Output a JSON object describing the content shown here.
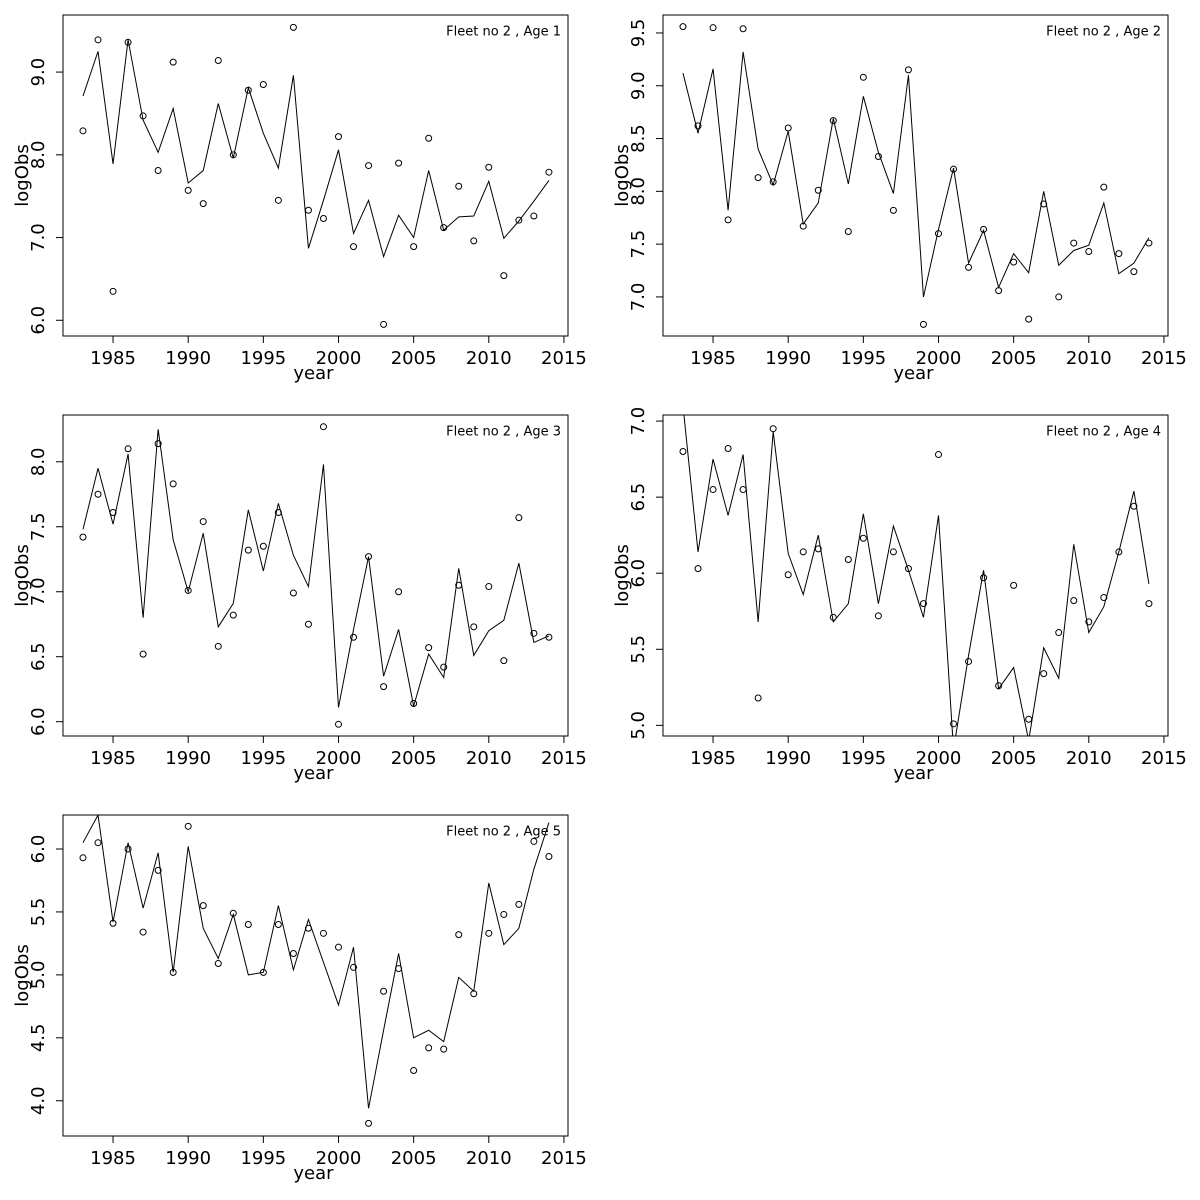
{
  "chart_data": [
    {
      "type": "line",
      "title": "Fleet no 2 , Age 1",
      "x_label": "year",
      "y_label": "logObs",
      "x": [
        1983,
        1984,
        1985,
        1986,
        1987,
        1988,
        1989,
        1990,
        1991,
        1992,
        1993,
        1994,
        1995,
        1996,
        1997,
        1998,
        1999,
        2000,
        2001,
        2002,
        2003,
        2004,
        2005,
        2006,
        2007,
        2008,
        2009,
        2010,
        2011,
        2012,
        2013,
        2014
      ],
      "xlim": [
        1981.67,
        2015.27
      ],
      "xticks": [
        1985,
        1990,
        1995,
        2000,
        2005,
        2010,
        2015
      ],
      "ylim": [
        5.81,
        9.69
      ],
      "yticks": [
        {
          "value": 6,
          "label": "6.0"
        },
        {
          "value": 7,
          "label": "7.0"
        },
        {
          "value": 8,
          "label": "8.0"
        },
        {
          "value": 9,
          "label": "9.0"
        }
      ],
      "series": [
        {
          "mode": "points",
          "color": "#000000",
          "values": [
            8.29,
            9.39,
            6.35,
            9.36,
            8.47,
            7.81,
            9.12,
            7.57,
            7.41,
            9.14,
            8.0,
            8.78,
            8.85,
            7.45,
            9.54,
            7.33,
            7.23,
            8.22,
            6.89,
            7.87,
            5.95,
            7.9,
            6.89,
            8.2,
            7.12,
            7.62,
            6.96,
            7.85,
            6.54,
            7.21,
            7.26,
            7.79
          ]
        },
        {
          "mode": "line",
          "color": "#000000",
          "values": [
            8.71,
            9.25,
            7.89,
            9.39,
            8.42,
            8.03,
            8.56,
            7.66,
            7.81,
            8.62,
            7.96,
            8.81,
            8.26,
            7.84,
            8.96,
            6.87,
            7.45,
            8.06,
            7.05,
            7.45,
            6.77,
            7.27,
            7.0,
            7.81,
            7.09,
            7.25,
            7.26,
            7.68,
            6.99,
            7.2,
            7.44,
            7.69
          ]
        }
      ]
    },
    {
      "type": "line",
      "title": "Fleet no 2 , Age 2",
      "x_label": "year",
      "y_label": "logObs",
      "x": [
        1983,
        1984,
        1985,
        1986,
        1987,
        1988,
        1989,
        1990,
        1991,
        1992,
        1993,
        1994,
        1995,
        1996,
        1997,
        1998,
        1999,
        2000,
        2001,
        2002,
        2003,
        2004,
        2005,
        2006,
        2007,
        2008,
        2009,
        2010,
        2011,
        2012,
        2013,
        2014
      ],
      "xlim": [
        1981.67,
        2015.27
      ],
      "xticks": [
        1985,
        1990,
        1995,
        2000,
        2005,
        2010,
        2015
      ],
      "ylim": [
        6.63,
        9.67
      ],
      "yticks": [
        {
          "value": 7,
          "label": "7.0"
        },
        7.5,
        {
          "value": 8,
          "label": "8.0"
        },
        8.5,
        {
          "value": 9,
          "label": "9.0"
        },
        9.5
      ],
      "series": [
        {
          "mode": "points",
          "color": "#000000",
          "values": [
            9.56,
            8.62,
            9.55,
            7.73,
            9.54,
            8.13,
            8.09,
            8.6,
            7.67,
            8.01,
            8.67,
            7.62,
            9.08,
            8.33,
            7.82,
            9.15,
            6.74,
            7.6,
            8.21,
            7.28,
            7.64,
            7.06,
            7.33,
            6.79,
            7.88,
            7.0,
            7.51,
            7.43,
            8.04,
            7.41,
            7.24,
            7.51
          ]
        },
        {
          "mode": "line",
          "color": "#000000",
          "values": [
            9.12,
            8.55,
            9.16,
            7.82,
            9.32,
            8.4,
            8.06,
            8.57,
            7.69,
            7.89,
            8.69,
            8.07,
            8.9,
            8.37,
            7.98,
            9.1,
            7.0,
            7.64,
            8.22,
            7.32,
            7.63,
            7.09,
            7.41,
            7.23,
            8.0,
            7.3,
            7.44,
            7.49,
            7.89,
            7.22,
            7.32,
            7.56
          ]
        }
      ]
    },
    {
      "type": "line",
      "title": "Fleet no 2 , Age 3",
      "x_label": "year",
      "y_label": "logObs",
      "x": [
        1983,
        1984,
        1985,
        1986,
        1987,
        1988,
        1989,
        1990,
        1991,
        1992,
        1993,
        1994,
        1995,
        1996,
        1997,
        1998,
        1999,
        2000,
        2001,
        2002,
        2003,
        2004,
        2005,
        2006,
        2007,
        2008,
        2009,
        2010,
        2011,
        2012,
        2013,
        2014
      ],
      "xlim": [
        1981.67,
        2015.27
      ],
      "xticks": [
        1985,
        1990,
        1995,
        2000,
        2005,
        2010,
        2015
      ],
      "ylim": [
        5.89,
        8.36
      ],
      "yticks": [
        {
          "value": 6,
          "label": "6.0"
        },
        6.5,
        {
          "value": 7,
          "label": "7.0"
        },
        7.5,
        {
          "value": 8,
          "label": "8.0"
        }
      ],
      "series": [
        {
          "mode": "points",
          "color": "#000000",
          "values": [
            7.42,
            7.75,
            7.61,
            8.1,
            6.52,
            8.14,
            7.83,
            7.01,
            7.54,
            6.58,
            6.82,
            7.32,
            7.35,
            7.61,
            6.99,
            6.75,
            8.27,
            5.98,
            6.65,
            7.27,
            6.27,
            7.0,
            6.14,
            6.57,
            6.42,
            7.05,
            6.73,
            7.04,
            6.47,
            7.57,
            6.68,
            6.65
          ]
        },
        {
          "mode": "line",
          "color": "#000000",
          "values": [
            7.48,
            7.95,
            7.52,
            8.06,
            6.8,
            8.25,
            7.4,
            7.0,
            7.45,
            6.73,
            6.91,
            7.63,
            7.16,
            7.68,
            7.28,
            7.04,
            7.98,
            6.11,
            6.71,
            7.27,
            6.35,
            6.71,
            6.12,
            6.52,
            6.34,
            7.18,
            6.51,
            6.7,
            6.78,
            7.22,
            6.61,
            6.66
          ]
        }
      ]
    },
    {
      "type": "line",
      "title": "Fleet no 2 , Age 4",
      "x_label": "year",
      "y_label": "logObs",
      "x": [
        1983,
        1984,
        1985,
        1986,
        1987,
        1988,
        1989,
        1990,
        1991,
        1992,
        1993,
        1994,
        1995,
        1996,
        1997,
        1998,
        1999,
        2000,
        2001,
        2002,
        2003,
        2004,
        2005,
        2006,
        2007,
        2008,
        2009,
        2010,
        2011,
        2012,
        2013,
        2014
      ],
      "xlim": [
        1981.67,
        2015.27
      ],
      "xticks": [
        1985,
        1990,
        1995,
        2000,
        2005,
        2010,
        2015
      ],
      "ylim": [
        4.93,
        7.04
      ],
      "yticks": [
        {
          "value": 5,
          "label": "5.0"
        },
        5.5,
        {
          "value": 6,
          "label": "6.0"
        },
        6.5,
        {
          "value": 7,
          "label": "7.0"
        }
      ],
      "series": [
        {
          "mode": "points",
          "color": "#000000",
          "values": [
            6.8,
            6.03,
            6.55,
            6.82,
            6.55,
            5.18,
            6.95,
            5.99,
            6.14,
            6.16,
            5.71,
            6.09,
            6.23,
            5.72,
            6.14,
            6.03,
            5.8,
            6.78,
            5.01,
            5.42,
            5.97,
            5.26,
            5.92,
            5.04,
            5.34,
            5.61,
            5.82,
            5.68,
            5.84,
            6.14,
            6.44,
            5.8
          ]
        },
        {
          "mode": "line",
          "color": "#000000",
          "values": [
            7.1,
            6.14,
            6.75,
            6.38,
            6.78,
            5.68,
            6.93,
            6.13,
            5.86,
            6.25,
            5.68,
            5.8,
            6.39,
            5.8,
            6.31,
            6.02,
            5.71,
            6.38,
            4.84,
            5.46,
            6.02,
            5.24,
            5.38,
            4.9,
            5.51,
            5.31,
            6.19,
            5.61,
            5.78,
            6.14,
            6.54,
            5.93
          ]
        }
      ]
    },
    {
      "type": "line",
      "title": "Fleet no 2 , Age 5",
      "x_label": "year",
      "y_label": "logObs",
      "x": [
        1983,
        1984,
        1985,
        1986,
        1987,
        1988,
        1989,
        1990,
        1991,
        1992,
        1993,
        1994,
        1995,
        1996,
        1997,
        1998,
        1999,
        2000,
        2001,
        2002,
        2003,
        2004,
        2005,
        2006,
        2007,
        2008,
        2009,
        2010,
        2011,
        2012,
        2013,
        2014
      ],
      "xlim": [
        1981.67,
        2015.27
      ],
      "xticks": [
        1985,
        1990,
        1995,
        2000,
        2005,
        2010,
        2015
      ],
      "ylim": [
        3.72,
        6.27
      ],
      "yticks": [
        {
          "value": 4,
          "label": "4.0"
        },
        4.5,
        {
          "value": 5,
          "label": "5.0"
        },
        5.5,
        {
          "value": 6,
          "label": "6.0"
        }
      ],
      "series": [
        {
          "mode": "points",
          "color": "#000000",
          "values": [
            5.93,
            6.05,
            5.41,
            6.0,
            5.34,
            5.83,
            5.02,
            6.18,
            5.55,
            5.09,
            5.49,
            5.4,
            5.02,
            5.4,
            5.17,
            5.37,
            5.33,
            5.22,
            5.06,
            3.82,
            4.87,
            5.05,
            4.24,
            4.42,
            4.41,
            5.32,
            4.85,
            5.33,
            5.48,
            5.56,
            6.06,
            5.94
          ]
        },
        {
          "mode": "line",
          "color": "#000000",
          "values": [
            6.05,
            6.27,
            5.42,
            6.05,
            5.53,
            5.97,
            5.02,
            6.02,
            5.37,
            5.13,
            5.48,
            5.0,
            5.02,
            5.55,
            5.04,
            5.44,
            5.1,
            4.76,
            5.22,
            3.94,
            4.56,
            5.17,
            4.5,
            4.56,
            4.47,
            4.98,
            4.87,
            5.73,
            5.24,
            5.37,
            5.84,
            6.21
          ]
        }
      ]
    }
  ]
}
